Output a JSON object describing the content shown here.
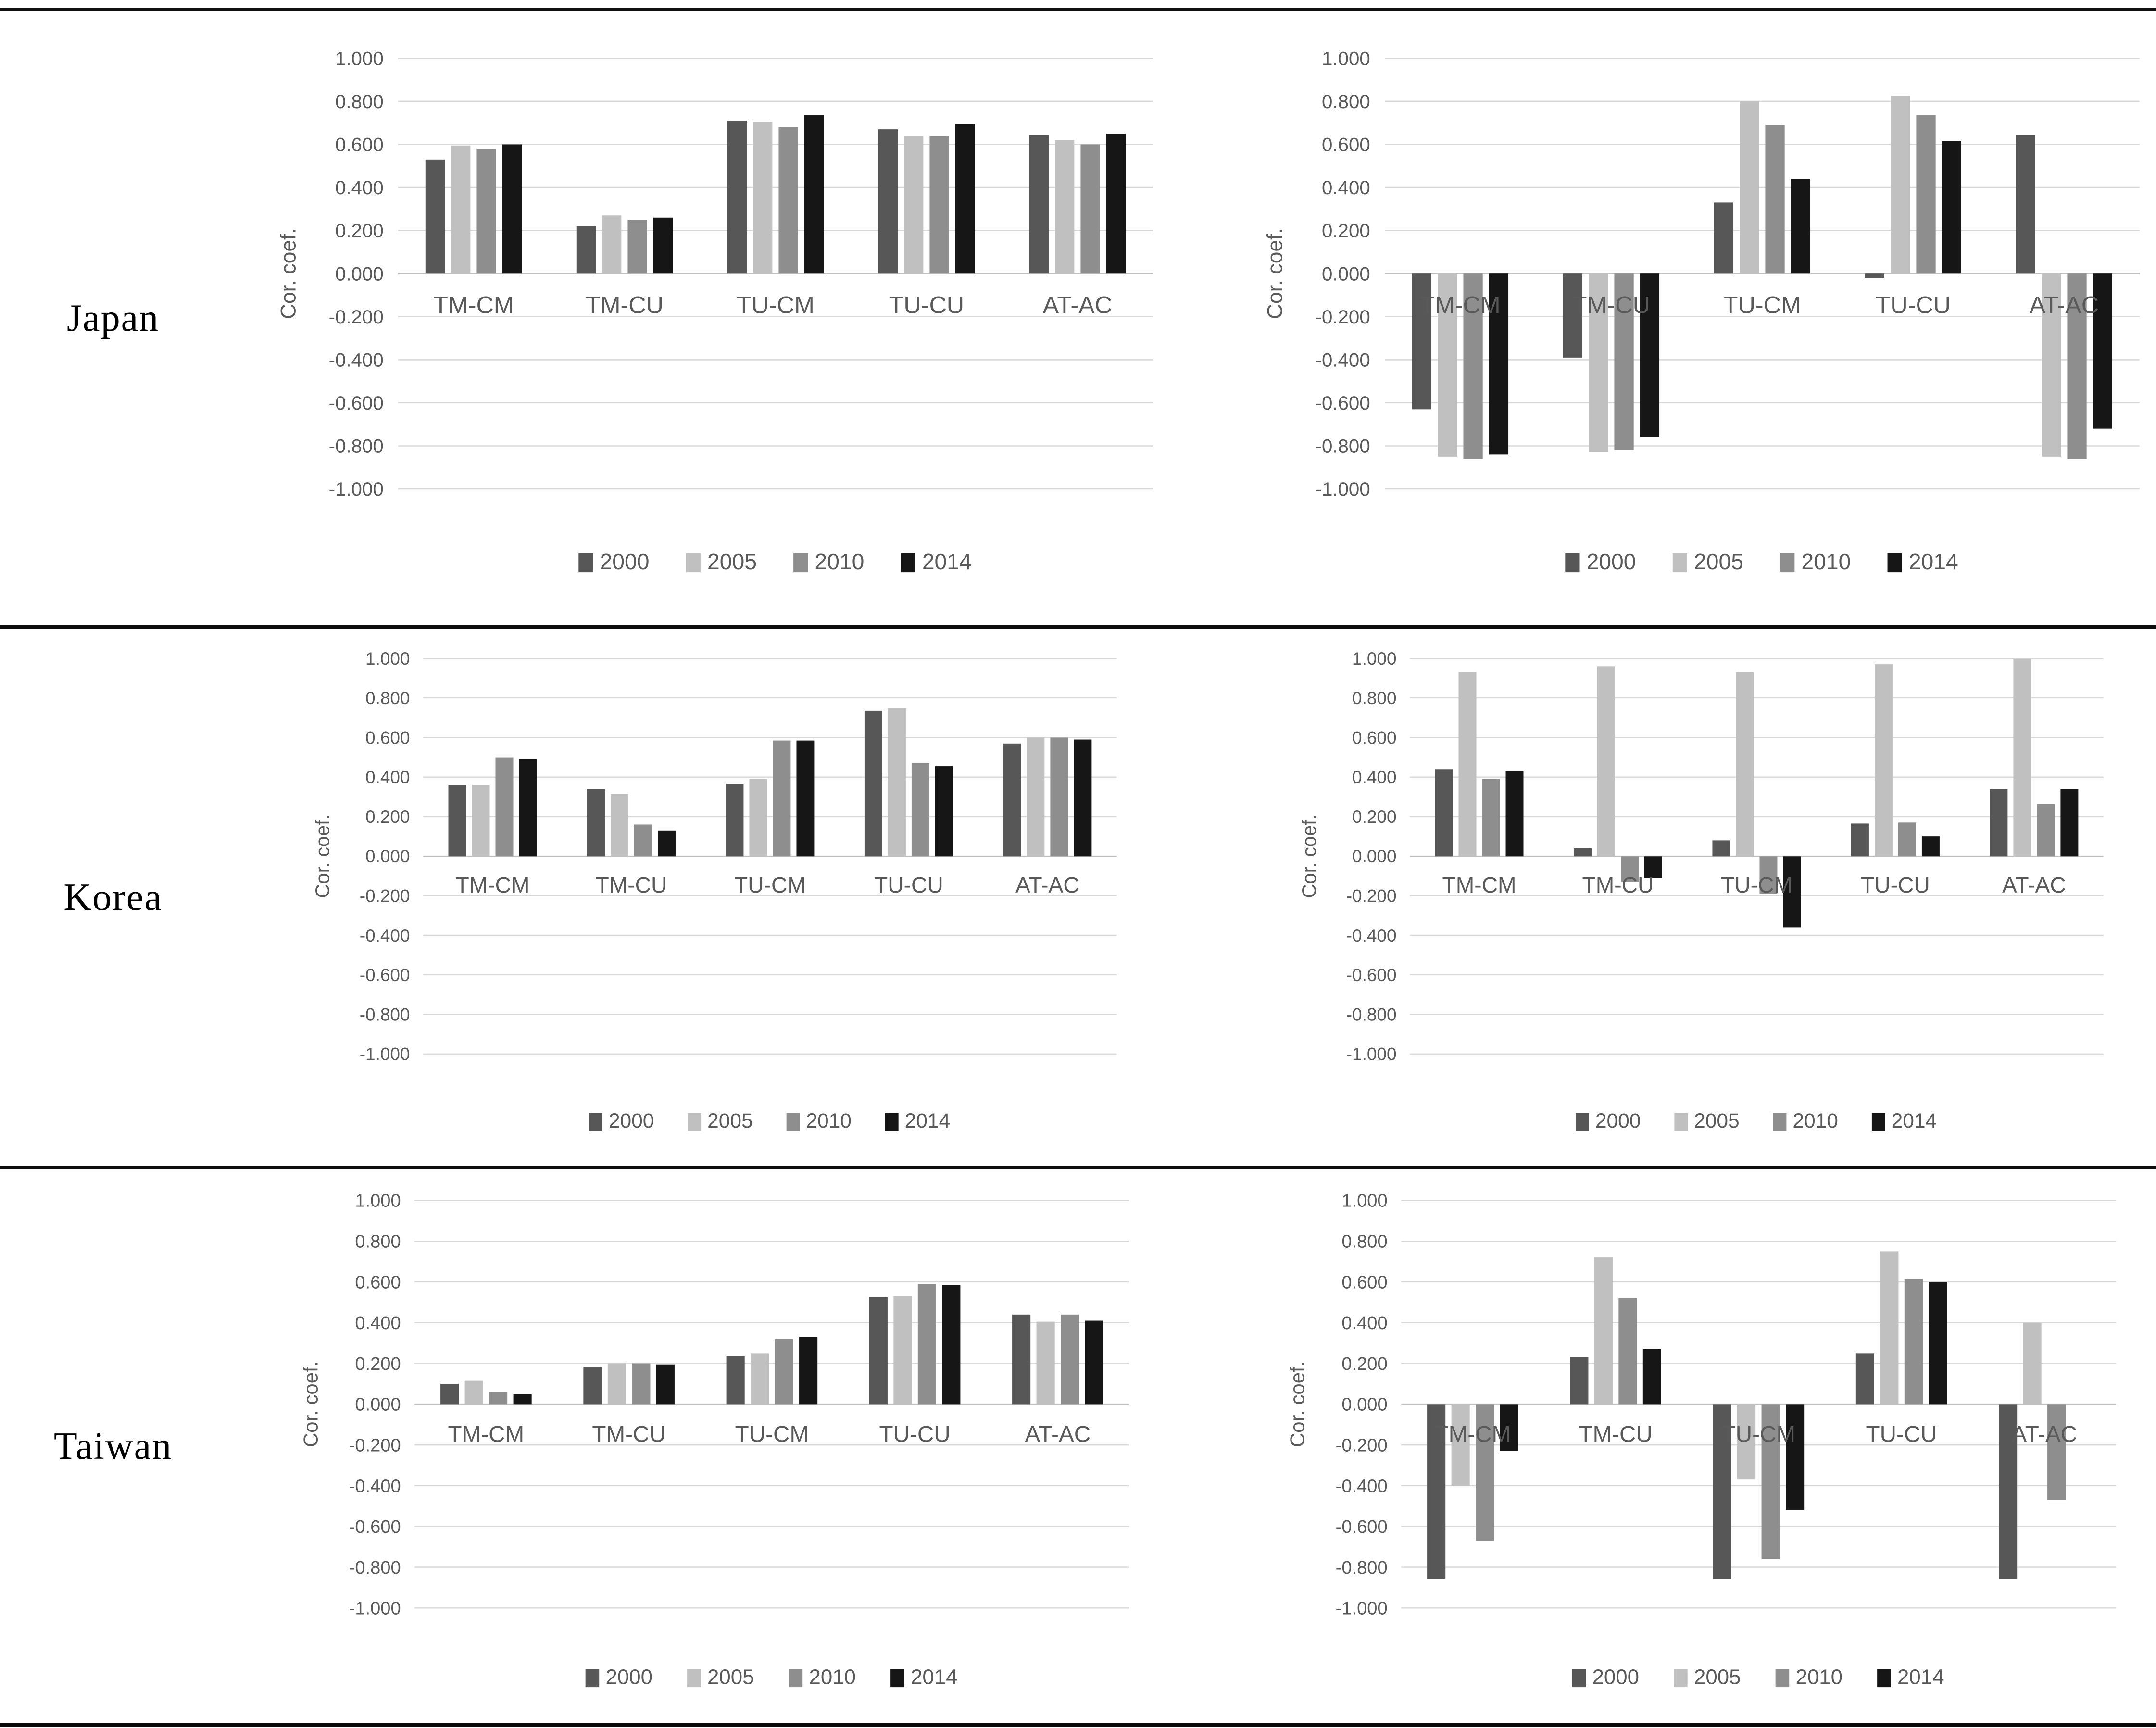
{
  "figure": {
    "ylabel": "Cor. coef.",
    "categories": [
      "TM-CM",
      "TM-CU",
      "TU-CM",
      "TU-CU",
      "AT-AC"
    ],
    "legend": [
      "2000",
      "2005",
      "2010",
      "2014"
    ],
    "axis": {
      "ticks": [
        "1.000",
        "0.800",
        "0.600",
        "0.400",
        "0.200",
        "0.000",
        "-0.200",
        "-0.400",
        "-0.600",
        "-0.800",
        "-1.000"
      ],
      "ymin": -1.0,
      "ymax": 1.0,
      "step": 0.2
    },
    "colors": {
      "series": {
        "2000": "#575757",
        "2005": "#c0c0c0",
        "2010": "#8e8e8e",
        "2014": "#161616"
      },
      "gridline": "#d8d8d8",
      "zero_line": "#bfbfbf",
      "text": "#595959",
      "rule": "#0d0d0d"
    },
    "rows": [
      {
        "label": "Japan"
      },
      {
        "label": "Korea"
      },
      {
        "label": "Taiwan"
      }
    ]
  },
  "chart_data": [
    {
      "type": "bar",
      "country": "Japan",
      "panel": "left",
      "ylabel": "Cor. coef.",
      "ylim": [
        -1.0,
        1.0
      ],
      "grid": true,
      "legend_position": "bottom",
      "categories": [
        "TM-CM",
        "TM-CU",
        "TU-CM",
        "TU-CU",
        "AT-AC"
      ],
      "series": [
        {
          "name": "2000",
          "values": [
            0.53,
            0.22,
            0.71,
            0.67,
            0.645
          ]
        },
        {
          "name": "2005",
          "values": [
            0.595,
            0.27,
            0.705,
            0.64,
            0.62
          ]
        },
        {
          "name": "2010",
          "values": [
            0.58,
            0.25,
            0.68,
            0.64,
            0.6
          ]
        },
        {
          "name": "2014",
          "values": [
            0.6,
            0.26,
            0.735,
            0.695,
            0.65
          ]
        }
      ]
    },
    {
      "type": "bar",
      "country": "Japan",
      "panel": "right",
      "ylabel": "Cor. coef.",
      "ylim": [
        -1.0,
        1.0
      ],
      "grid": true,
      "legend_position": "bottom",
      "categories": [
        "TM-CM",
        "TM-CU",
        "TU-CM",
        "TU-CU",
        "AT-AC"
      ],
      "series": [
        {
          "name": "2000",
          "values": [
            -0.63,
            -0.39,
            0.33,
            -0.02,
            0.645
          ]
        },
        {
          "name": "2005",
          "values": [
            -0.85,
            -0.83,
            0.8,
            0.825,
            -0.85
          ]
        },
        {
          "name": "2010",
          "values": [
            -0.86,
            -0.82,
            0.69,
            0.735,
            -0.86
          ]
        },
        {
          "name": "2014",
          "values": [
            -0.84,
            -0.76,
            0.44,
            0.615,
            -0.72
          ]
        }
      ]
    },
    {
      "type": "bar",
      "country": "Korea",
      "panel": "left",
      "ylabel": "Cor. coef.",
      "ylim": [
        -1.0,
        1.0
      ],
      "grid": true,
      "legend_position": "bottom",
      "categories": [
        "TM-CM",
        "TM-CU",
        "TU-CM",
        "TU-CU",
        "AT-AC"
      ],
      "series": [
        {
          "name": "2000",
          "values": [
            0.36,
            0.34,
            0.365,
            0.735,
            0.57
          ]
        },
        {
          "name": "2005",
          "values": [
            0.36,
            0.315,
            0.39,
            0.75,
            0.6
          ]
        },
        {
          "name": "2010",
          "values": [
            0.5,
            0.16,
            0.585,
            0.47,
            0.6
          ]
        },
        {
          "name": "2014",
          "values": [
            0.49,
            0.13,
            0.585,
            0.455,
            0.59
          ]
        }
      ]
    },
    {
      "type": "bar",
      "country": "Korea",
      "panel": "right",
      "ylabel": "Cor. coef.",
      "ylim": [
        -1.0,
        1.0
      ],
      "grid": true,
      "legend_position": "bottom",
      "categories": [
        "TM-CM",
        "TM-CU",
        "TU-CM",
        "TU-CU",
        "AT-AC"
      ],
      "series": [
        {
          "name": "2000",
          "values": [
            0.44,
            0.04,
            0.08,
            0.165,
            0.34
          ]
        },
        {
          "name": "2005",
          "values": [
            0.93,
            0.96,
            0.93,
            0.97,
            1.0
          ]
        },
        {
          "name": "2010",
          "values": [
            0.39,
            -0.13,
            -0.19,
            0.17,
            0.265
          ]
        },
        {
          "name": "2014",
          "values": [
            0.43,
            -0.11,
            -0.36,
            0.1,
            0.34
          ]
        }
      ]
    },
    {
      "type": "bar",
      "country": "Taiwan",
      "panel": "left",
      "ylabel": "Cor. coef.",
      "ylim": [
        -1.0,
        1.0
      ],
      "grid": true,
      "legend_position": "bottom",
      "categories": [
        "TM-CM",
        "TM-CU",
        "TU-CM",
        "TU-CU",
        "AT-AC"
      ],
      "series": [
        {
          "name": "2000",
          "values": [
            0.1,
            0.18,
            0.235,
            0.525,
            0.44
          ]
        },
        {
          "name": "2005",
          "values": [
            0.115,
            0.2,
            0.25,
            0.53,
            0.405
          ]
        },
        {
          "name": "2010",
          "values": [
            0.06,
            0.2,
            0.32,
            0.59,
            0.44
          ]
        },
        {
          "name": "2014",
          "values": [
            0.05,
            0.195,
            0.33,
            0.585,
            0.41
          ]
        }
      ]
    },
    {
      "type": "bar",
      "country": "Taiwan",
      "panel": "right",
      "ylabel": "Cor. coef.",
      "ylim": [
        -1.0,
        1.0
      ],
      "grid": true,
      "legend_position": "bottom",
      "categories": [
        "TM-CM",
        "TM-CU",
        "TU-CM",
        "TU-CU",
        "AT-AC"
      ],
      "series": [
        {
          "name": "2000",
          "values": [
            -0.86,
            0.23,
            -0.86,
            0.25,
            -0.86
          ]
        },
        {
          "name": "2005",
          "values": [
            -0.4,
            0.72,
            -0.37,
            0.75,
            0.4
          ]
        },
        {
          "name": "2010",
          "values": [
            -0.67,
            0.52,
            -0.76,
            0.615,
            -0.47
          ]
        },
        {
          "name": "2014",
          "values": [
            -0.23,
            0.27,
            -0.52,
            0.6,
            0.0
          ]
        }
      ]
    }
  ]
}
